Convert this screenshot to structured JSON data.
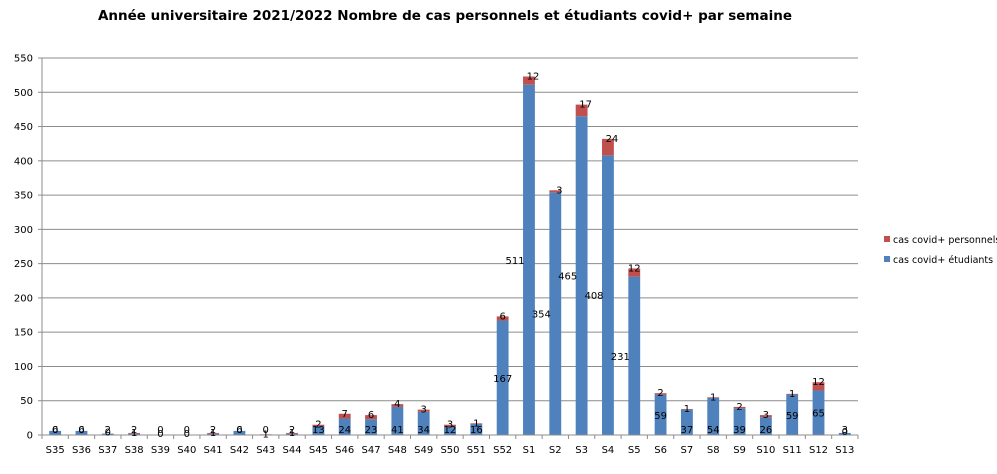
{
  "chart_data": {
    "type": "bar",
    "stacked": true,
    "title": "Année universitaire 2021/2022  Nombre de cas personnels et étudiants covid+ par semaine",
    "xlabel": "",
    "ylabel": "",
    "ylim": [
      0,
      550
    ],
    "yticks": [
      0,
      50,
      100,
      150,
      200,
      250,
      300,
      350,
      400,
      450,
      500,
      550
    ],
    "grid": true,
    "legend_position": "right",
    "categories": [
      "S35",
      "S36",
      "S37",
      "S38",
      "S39",
      "S40",
      "S41",
      "S42",
      "S43",
      "S44",
      "S45",
      "S46",
      "S47",
      "S48",
      "S49",
      "S50",
      "S51",
      "S52",
      "S1",
      "S2",
      "S3",
      "S4",
      "S5",
      "S6",
      "S7",
      "S8",
      "S9",
      "S10",
      "S11",
      "S12",
      "S13"
    ],
    "series": [
      {
        "name": "cas covid+ étudiants",
        "color": "#4f81bd",
        "values": [
          6,
          6,
          2,
          2,
          0,
          0,
          2,
          6,
          0,
          2,
          13,
          24,
          23,
          41,
          34,
          12,
          16,
          167,
          511,
          354,
          465,
          408,
          231,
          59,
          37,
          54,
          39,
          26,
          59,
          65,
          3
        ],
        "labels": [
          "6",
          "6",
          "2",
          "2",
          "0",
          "0",
          "2",
          "6",
          "0",
          "2",
          "13",
          "24",
          "23",
          "41",
          "34",
          "12",
          "16",
          "167",
          "511",
          "354",
          "465",
          "408",
          "231",
          "59",
          "37",
          "54",
          "39",
          "26",
          "59",
          "65",
          "3"
        ]
      },
      {
        "name": "cas covid+ personnels",
        "color": "#c0504d",
        "values": [
          0,
          0,
          0,
          1,
          0,
          0,
          1,
          0,
          1,
          1,
          2,
          7,
          6,
          4,
          3,
          3,
          1,
          6,
          12,
          3,
          17,
          24,
          12,
          2,
          1,
          1,
          2,
          3,
          1,
          12,
          0
        ],
        "labels": [
          "0",
          "0",
          "0",
          "1",
          "0",
          "0",
          "1",
          "0",
          "1",
          "1",
          "2",
          "7",
          "6",
          "4",
          "3",
          "3",
          "1",
          "6",
          "12",
          "3",
          "17",
          "24",
          "12",
          "2",
          "1",
          "1",
          "2",
          "3",
          "1",
          "12",
          "0"
        ]
      }
    ]
  }
}
